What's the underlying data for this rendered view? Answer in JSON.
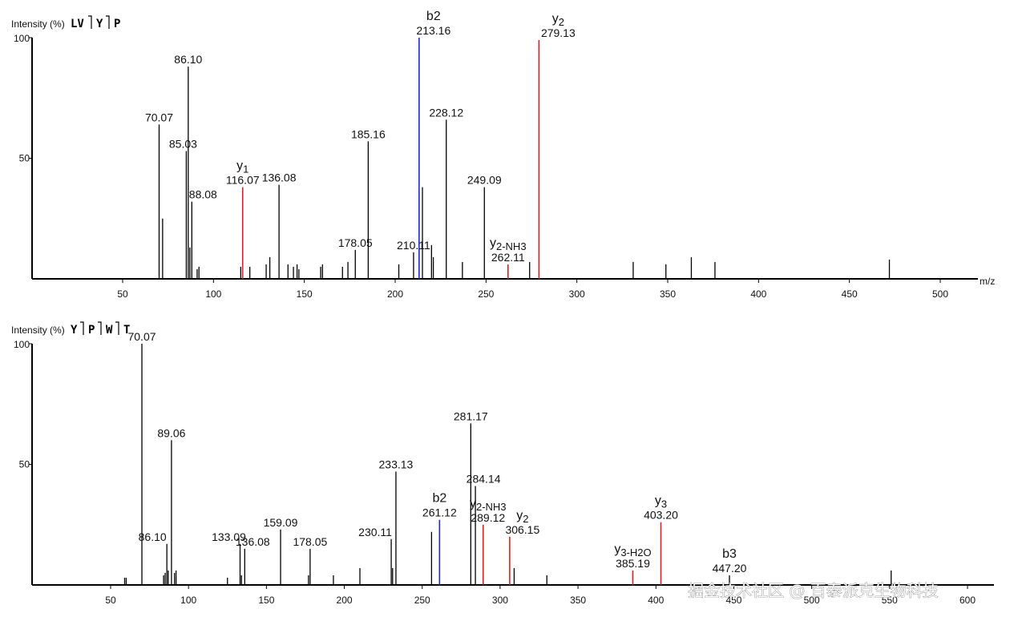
{
  "chart_data": [
    {
      "type": "bar",
      "title": "",
      "sequence": [
        "LV",
        "Y",
        "P"
      ],
      "ylabel": "Intensity (%)",
      "xlabel": "m/z",
      "xlim": [
        0,
        530
      ],
      "ylim": [
        0,
        100
      ],
      "x_ticks": [
        50,
        100,
        150,
        200,
        250,
        300,
        350,
        400,
        450,
        500
      ],
      "x_tick_labels": [
        "50",
        "100",
        "150",
        "200",
        "250",
        "300",
        "350",
        "400",
        "450",
        "500"
      ],
      "y_ticks": [
        50,
        100
      ],
      "y_tick_labels": [
        "50",
        "100"
      ],
      "peaks": [
        {
          "mz": 70.07,
          "intensity": 64,
          "color": "black",
          "label": "70.07"
        },
        {
          "mz": 72.0,
          "intensity": 25,
          "color": "black"
        },
        {
          "mz": 85.03,
          "intensity": 53,
          "color": "black",
          "label": "85.03"
        },
        {
          "mz": 86.1,
          "intensity": 88,
          "color": "black",
          "label": "86.10"
        },
        {
          "mz": 87.0,
          "intensity": 13,
          "color": "black"
        },
        {
          "mz": 88.08,
          "intensity": 32,
          "color": "black",
          "label": "88.08"
        },
        {
          "mz": 91.0,
          "intensity": 4,
          "color": "black"
        },
        {
          "mz": 92.0,
          "intensity": 5,
          "color": "black"
        },
        {
          "mz": 116.07,
          "intensity": 38,
          "color": "red",
          "label": "116.07",
          "ion": "y",
          "ion_sub": "1"
        },
        {
          "mz": 115.0,
          "intensity": 5,
          "color": "black"
        },
        {
          "mz": 120.0,
          "intensity": 5,
          "color": "black"
        },
        {
          "mz": 129.0,
          "intensity": 6,
          "color": "black"
        },
        {
          "mz": 131.0,
          "intensity": 9,
          "color": "black"
        },
        {
          "mz": 136.08,
          "intensity": 39,
          "color": "black",
          "label": "136.08"
        },
        {
          "mz": 141.0,
          "intensity": 6,
          "color": "black"
        },
        {
          "mz": 144.0,
          "intensity": 5,
          "color": "black"
        },
        {
          "mz": 146.0,
          "intensity": 6,
          "color": "black"
        },
        {
          "mz": 147.0,
          "intensity": 4,
          "color": "black"
        },
        {
          "mz": 159.0,
          "intensity": 5,
          "color": "black"
        },
        {
          "mz": 160.0,
          "intensity": 6,
          "color": "black"
        },
        {
          "mz": 171.0,
          "intensity": 5,
          "color": "black"
        },
        {
          "mz": 174.0,
          "intensity": 7,
          "color": "black"
        },
        {
          "mz": 178.05,
          "intensity": 12,
          "color": "black",
          "label": "178.05"
        },
        {
          "mz": 185.16,
          "intensity": 57,
          "color": "black",
          "label": "185.16"
        },
        {
          "mz": 202.0,
          "intensity": 6,
          "color": "black"
        },
        {
          "mz": 210.11,
          "intensity": 11,
          "color": "black",
          "label": "210.11"
        },
        {
          "mz": 213.16,
          "intensity": 100,
          "color": "blue",
          "label": "213.16",
          "ion": "b2"
        },
        {
          "mz": 215.0,
          "intensity": 38,
          "color": "black"
        },
        {
          "mz": 220.0,
          "intensity": 14,
          "color": "black"
        },
        {
          "mz": 221.0,
          "intensity": 9,
          "color": "black"
        },
        {
          "mz": 228.12,
          "intensity": 66,
          "color": "black",
          "label": "228.12"
        },
        {
          "mz": 237.0,
          "intensity": 7,
          "color": "black"
        },
        {
          "mz": 249.09,
          "intensity": 38,
          "color": "black",
          "label": "249.09"
        },
        {
          "mz": 262.11,
          "intensity": 6,
          "color": "red",
          "label": "262.11",
          "ion": "y",
          "ion_sub": "2-NH3"
        },
        {
          "mz": 274.0,
          "intensity": 7,
          "color": "black"
        },
        {
          "mz": 279.13,
          "intensity": 99,
          "color": "red",
          "label": "279.13",
          "ion": "y",
          "ion_sub": "2"
        },
        {
          "mz": 331.0,
          "intensity": 7,
          "color": "black"
        },
        {
          "mz": 349.0,
          "intensity": 6,
          "color": "black"
        },
        {
          "mz": 363.0,
          "intensity": 9,
          "color": "black"
        },
        {
          "mz": 376.0,
          "intensity": 7,
          "color": "black"
        },
        {
          "mz": 472.0,
          "intensity": 8,
          "color": "black"
        }
      ]
    },
    {
      "type": "bar",
      "title": "",
      "sequence": [
        "Y",
        "P",
        "W",
        "T"
      ],
      "ylabel": "Intensity (%)",
      "xlabel": "",
      "xlim": [
        0,
        610
      ],
      "ylim": [
        0,
        100
      ],
      "x_ticks": [
        50,
        100,
        150,
        200,
        250,
        300,
        350,
        400,
        450,
        500,
        550,
        600
      ],
      "x_tick_labels": [
        "50",
        "100",
        "150",
        "200",
        "250",
        "300",
        "350",
        "400",
        "450",
        "500",
        "550",
        "600"
      ],
      "y_ticks": [
        50,
        100
      ],
      "y_tick_labels": [
        "50",
        "100"
      ],
      "peaks": [
        {
          "mz": 59.0,
          "intensity": 3,
          "color": "black"
        },
        {
          "mz": 60.0,
          "intensity": 3,
          "color": "black"
        },
        {
          "mz": 70.07,
          "intensity": 100,
          "color": "black",
          "label": "70.07"
        },
        {
          "mz": 84.0,
          "intensity": 4,
          "color": "black"
        },
        {
          "mz": 85.0,
          "intensity": 5,
          "color": "black"
        },
        {
          "mz": 86.1,
          "intensity": 17,
          "color": "black",
          "label": "86.10"
        },
        {
          "mz": 87.0,
          "intensity": 6,
          "color": "black"
        },
        {
          "mz": 89.06,
          "intensity": 60,
          "color": "black",
          "label": "89.06"
        },
        {
          "mz": 91.0,
          "intensity": 5,
          "color": "black"
        },
        {
          "mz": 92.0,
          "intensity": 6,
          "color": "black"
        },
        {
          "mz": 125.0,
          "intensity": 3,
          "color": "black"
        },
        {
          "mz": 133.09,
          "intensity": 17,
          "color": "black",
          "label": "133.09"
        },
        {
          "mz": 134.0,
          "intensity": 4,
          "color": "black"
        },
        {
          "mz": 136.08,
          "intensity": 15,
          "color": "black",
          "label": "136.08"
        },
        {
          "mz": 159.09,
          "intensity": 23,
          "color": "black",
          "label": "159.09"
        },
        {
          "mz": 177.0,
          "intensity": 4,
          "color": "black"
        },
        {
          "mz": 178.05,
          "intensity": 15,
          "color": "black",
          "label": "178.05"
        },
        {
          "mz": 193.0,
          "intensity": 4,
          "color": "black"
        },
        {
          "mz": 210.0,
          "intensity": 7,
          "color": "black"
        },
        {
          "mz": 230.11,
          "intensity": 19,
          "color": "black",
          "label": "230.11"
        },
        {
          "mz": 231.0,
          "intensity": 7,
          "color": "black"
        },
        {
          "mz": 233.13,
          "intensity": 47,
          "color": "black",
          "label": "233.13"
        },
        {
          "mz": 256.0,
          "intensity": 22,
          "color": "black"
        },
        {
          "mz": 261.12,
          "intensity": 27,
          "color": "blue",
          "label": "261.12",
          "ion": "b2"
        },
        {
          "mz": 281.17,
          "intensity": 67,
          "color": "black",
          "label": "281.17"
        },
        {
          "mz": 284.14,
          "intensity": 41,
          "color": "black",
          "label": "284.14"
        },
        {
          "mz": 289.12,
          "intensity": 25,
          "color": "red",
          "label": "289.12",
          "ion": "y",
          "ion_sub": "2-NH3"
        },
        {
          "mz": 306.15,
          "intensity": 20,
          "color": "red",
          "label": "306.15",
          "ion": "y",
          "ion_sub": "2"
        },
        {
          "mz": 309.0,
          "intensity": 7,
          "color": "black"
        },
        {
          "mz": 330.0,
          "intensity": 4,
          "color": "black"
        },
        {
          "mz": 385.19,
          "intensity": 6,
          "color": "red",
          "label": "385.19",
          "ion": "y",
          "ion_sub": "3-H2O"
        },
        {
          "mz": 403.2,
          "intensity": 26,
          "color": "red",
          "label": "403.20",
          "ion": "y",
          "ion_sub": "3"
        },
        {
          "mz": 447.2,
          "intensity": 4,
          "color": "black",
          "label": "447.20",
          "ion": "b3"
        },
        {
          "mz": 551.0,
          "intensity": 6,
          "color": "black"
        }
      ]
    }
  ],
  "watermark": "掘金技术社区 @ 百泰派克生物科技"
}
